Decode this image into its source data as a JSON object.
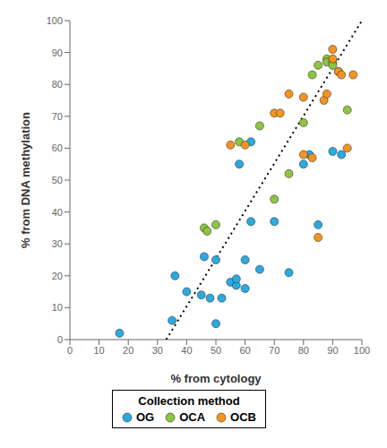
{
  "chart_data": {
    "type": "scatter",
    "xlabel": "% from cytology",
    "ylabel": "% from DNA methylation",
    "xlim": [
      0,
      100
    ],
    "ylim": [
      0,
      100
    ],
    "xticks": [
      0,
      10,
      20,
      30,
      40,
      50,
      60,
      70,
      80,
      90,
      100
    ],
    "yticks": [
      0,
      10,
      20,
      30,
      40,
      50,
      60,
      70,
      80,
      90,
      100
    ],
    "grid": false,
    "legend": "bottom",
    "legend_title": "Collection method",
    "series": [
      {
        "type": "line",
        "color": "#000000",
        "line_style": "dotted",
        "x": [
          33,
          100
        ],
        "y": [
          0,
          100
        ]
      },
      {
        "name": "OG",
        "color": "#29ABE2",
        "marker": "circle",
        "x": [
          17,
          35,
          36,
          40,
          45,
          46,
          48,
          50,
          50,
          52,
          55,
          57,
          57,
          58,
          60,
          60,
          62,
          62,
          65,
          70,
          75,
          80,
          82,
          85,
          90,
          93
        ],
        "y": [
          2,
          6,
          20,
          15,
          14,
          26,
          13,
          5,
          25,
          13,
          18,
          17,
          19,
          55,
          16,
          25,
          37,
          62,
          22,
          37,
          21,
          55,
          58,
          36,
          59,
          58
        ]
      },
      {
        "name": "OCA",
        "color": "#8DC63F",
        "marker": "circle",
        "x": [
          46,
          47,
          50,
          58,
          65,
          70,
          75,
          80,
          83,
          85,
          88,
          88,
          90,
          90,
          92,
          95
        ],
        "y": [
          35,
          34,
          36,
          62,
          67,
          44,
          52,
          68,
          83,
          86,
          88,
          87,
          87,
          86,
          84,
          72
        ]
      },
      {
        "name": "OCB",
        "color": "#F7941D",
        "marker": "circle",
        "x": [
          55,
          60,
          70,
          72,
          75,
          80,
          80,
          83,
          85,
          87,
          88,
          90,
          90,
          92,
          93,
          95,
          97
        ],
        "y": [
          61,
          61,
          71,
          71,
          77,
          58,
          76,
          57,
          32,
          75,
          77,
          88,
          91,
          84,
          83,
          60,
          83
        ]
      }
    ]
  }
}
